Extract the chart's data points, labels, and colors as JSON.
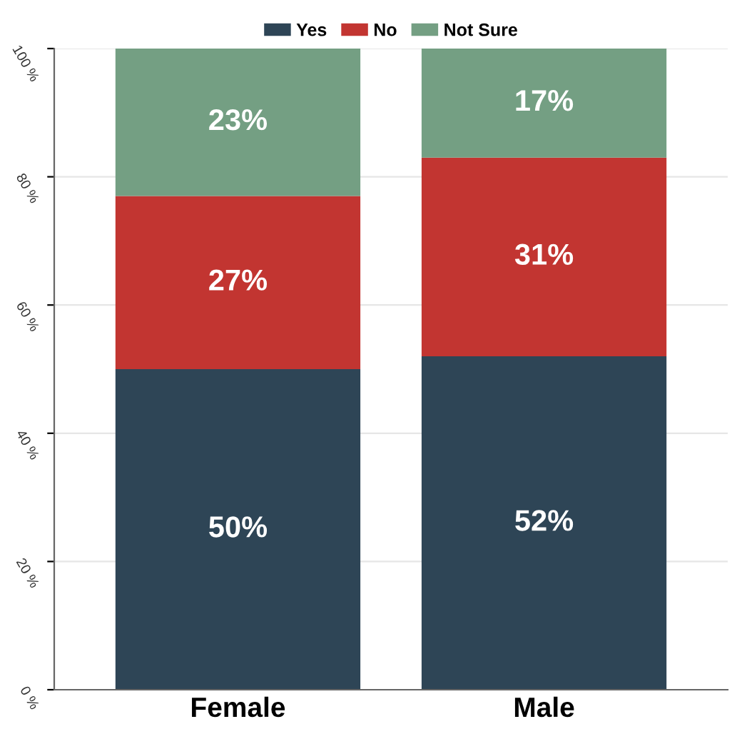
{
  "chart_data": {
    "type": "bar",
    "stacked": true,
    "categories": [
      "Female",
      "Male"
    ],
    "series": [
      {
        "name": "Yes",
        "color": "#2e4556",
        "values": [
          50,
          52
        ],
        "value_labels": [
          "50%",
          "52%"
        ]
      },
      {
        "name": "No",
        "color": "#c23531",
        "values": [
          27,
          31
        ],
        "value_labels": [
          "27%",
          "31%"
        ]
      },
      {
        "name": "Not Sure",
        "color": "#749f83",
        "values": [
          23,
          17
        ],
        "value_labels": [
          "23%",
          "17%"
        ]
      }
    ],
    "ylim": [
      0,
      100
    ],
    "yticks": [
      {
        "value": 0,
        "label": "0 %"
      },
      {
        "value": 20,
        "label": "20 %"
      },
      {
        "value": 40,
        "label": "40 %"
      },
      {
        "value": 60,
        "label": "60 %"
      },
      {
        "value": 80,
        "label": "80 %"
      },
      {
        "value": 100,
        "label": "100 %"
      }
    ],
    "grid": "y",
    "legend": "top"
  }
}
